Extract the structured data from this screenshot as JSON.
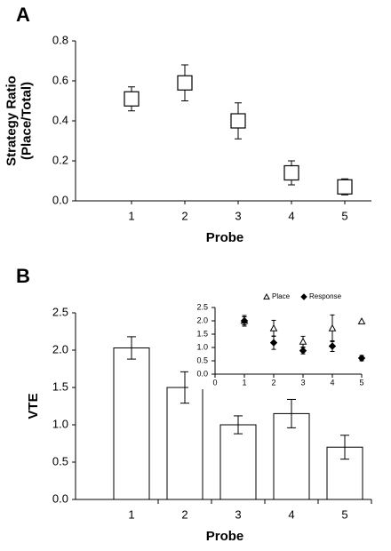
{
  "chart_data": [
    {
      "type": "scatter",
      "panel_label": "A",
      "x": [
        1,
        2,
        3,
        4,
        5
      ],
      "values": [
        0.51,
        0.59,
        0.4,
        0.14,
        0.07
      ],
      "errors": [
        0.06,
        0.09,
        0.09,
        0.06,
        0.04
      ],
      "marker": "square",
      "color": "#000000",
      "xlabel": "Probe",
      "ylabel": [
        "Strategy Ratio",
        "(Place/Total)"
      ],
      "xlim": [
        0,
        5.5
      ],
      "ylim": [
        0,
        0.8
      ],
      "xticks": [
        1,
        2,
        3,
        4,
        5
      ],
      "yticks": [
        {
          "value": 0,
          "label": "0.0"
        },
        {
          "value": 0.2,
          "label": "0.2"
        },
        {
          "value": 0.4,
          "label": "0.4"
        },
        {
          "value": 0.6,
          "label": "0.6"
        },
        {
          "value": 0.8,
          "label": "0.8"
        }
      ]
    },
    {
      "type": "bar",
      "panel_label": "B",
      "categories": [
        "1",
        "2",
        "3",
        "4",
        "5"
      ],
      "values": [
        2.03,
        1.5,
        1.0,
        1.15,
        0.7
      ],
      "errors": [
        0.15,
        0.21,
        0.12,
        0.19,
        0.16
      ],
      "color": "#ffffff",
      "xlabel": "Probe",
      "ylabel": "VTE",
      "ylim": [
        0,
        2.5
      ],
      "yticks": [
        {
          "value": 0,
          "label": "0.0"
        },
        {
          "value": 0.5,
          "label": "0.5"
        },
        {
          "value": 1,
          "label": "1.0"
        },
        {
          "value": 1.5,
          "label": "1.5"
        },
        {
          "value": 2,
          "label": "2.0"
        },
        {
          "value": 2.5,
          "label": "2.5"
        }
      ]
    },
    {
      "type": "scatter",
      "x": [
        1,
        2,
        3,
        4,
        5
      ],
      "series": [
        {
          "name": "Place",
          "marker": "triangle",
          "color": "#000000",
          "values": [
            2.0,
            1.72,
            1.22,
            1.72,
            1.98
          ],
          "errors": [
            0.2,
            0.3,
            0.2,
            0.5,
            null
          ]
        },
        {
          "name": "Response",
          "marker": "diamond",
          "color": "#000000",
          "values": [
            2.0,
            1.18,
            0.88,
            1.05,
            0.6
          ],
          "errors": [
            0.15,
            0.25,
            0.12,
            0.2,
            0.1
          ]
        }
      ],
      "xlim": [
        0,
        5
      ],
      "ylim": [
        0,
        2.5
      ],
      "xticks": [
        0,
        1,
        2,
        3,
        4,
        5
      ],
      "yticks": [
        {
          "value": 0,
          "label": "0.0"
        },
        {
          "value": 0.5,
          "label": "0.5"
        },
        {
          "value": 1,
          "label": "1.0"
        },
        {
          "value": 1.5,
          "label": "1.5"
        },
        {
          "value": 2,
          "label": "2.0"
        },
        {
          "value": 2.5,
          "label": "2.5"
        }
      ]
    }
  ]
}
